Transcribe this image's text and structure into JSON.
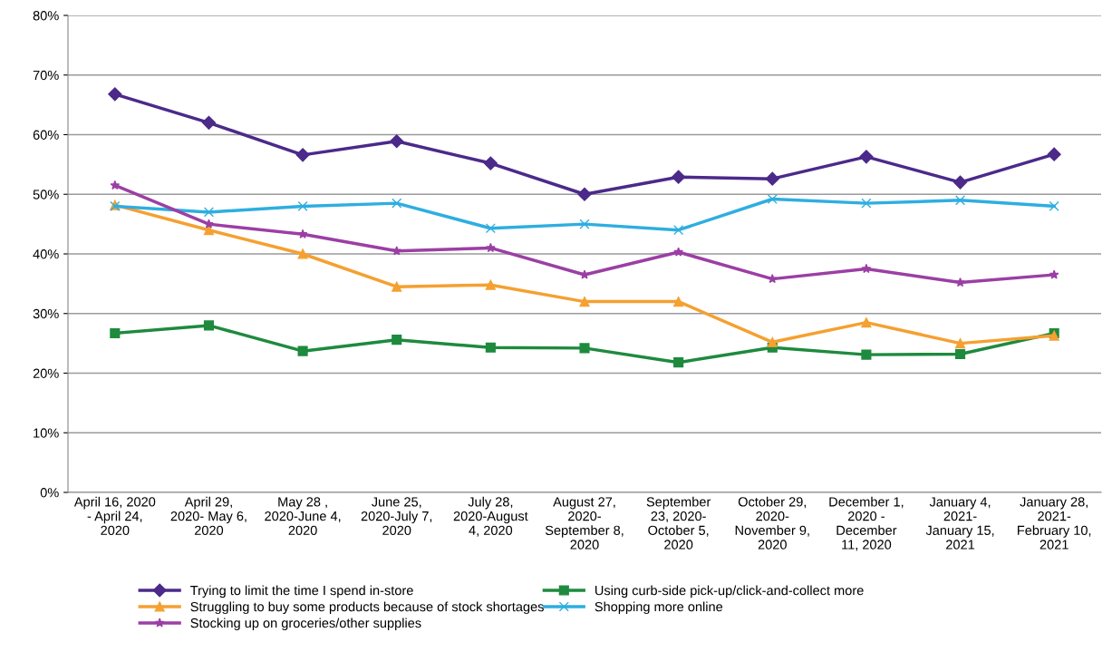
{
  "chart_data": {
    "type": "line",
    "categories": [
      "April 16, 2020\n- April 24,\n2020",
      "April 29,\n2020- May 6,\n2020",
      "May 28 ,\n2020-June 4,\n2020",
      "June 25,\n2020-July 7,\n2020",
      "July 28,\n2020-August\n4, 2020",
      "August 27,\n2020-\nSeptember 8,\n2020",
      "September\n23, 2020-\nOctober 5,\n2020",
      "October 29,\n2020-\nNovember 9,\n2020",
      "December 1,\n2020 -\nDecember\n11, 2020",
      "January 4,\n2021-\nJanuary 15,\n2021",
      "January 28,\n2021-\nFebruary 10,\n2021"
    ],
    "series": [
      {
        "name": "Trying to limit the time I spend in-store",
        "color": "#4b2a8a",
        "marker": "diamond",
        "values": [
          66.8,
          62,
          56.6,
          58.9,
          55.2,
          50.0,
          52.9,
          52.6,
          56.3,
          52.0,
          56.7
        ]
      },
      {
        "name": "Using curb-side pick-up/click-and-collect more",
        "color": "#1e8a3e",
        "marker": "square",
        "values": [
          26.7,
          28,
          23.7,
          25.6,
          24.3,
          24.2,
          21.8,
          24.3,
          23.1,
          23.2,
          26.7
        ]
      },
      {
        "name": "Struggling to buy some products because of stock shortages",
        "color": "#f5a031",
        "marker": "triangle",
        "values": [
          48.2,
          44,
          40,
          34.5,
          34.8,
          32,
          32,
          25.2,
          28.5,
          25,
          26.3
        ]
      },
      {
        "name": "Shopping more online",
        "color": "#2eaee0",
        "marker": "cross",
        "values": [
          48,
          47,
          48,
          48.5,
          44.3,
          45,
          44,
          49.2,
          48.5,
          49,
          48
        ]
      },
      {
        "name": "Stocking up on groceries/other supplies",
        "color": "#9b3fa4",
        "marker": "star",
        "values": [
          51.5,
          45,
          43.3,
          40.5,
          41,
          36.5,
          40.3,
          35.8,
          37.5,
          35.2,
          36.5
        ]
      }
    ],
    "ylim": [
      0,
      80
    ],
    "yticks": [
      {
        "value": 0,
        "label": "0%"
      },
      {
        "value": 10,
        "label": "10%"
      },
      {
        "value": 20,
        "label": "20%"
      },
      {
        "value": 30,
        "label": "30%"
      },
      {
        "value": 40,
        "label": "40%"
      },
      {
        "value": 50,
        "label": "50%"
      },
      {
        "value": 60,
        "label": "60%"
      },
      {
        "value": 70,
        "label": "70%"
      },
      {
        "value": 80,
        "label": "80%"
      }
    ],
    "grid": "y",
    "legend": "bottom",
    "line_style": "solid"
  }
}
